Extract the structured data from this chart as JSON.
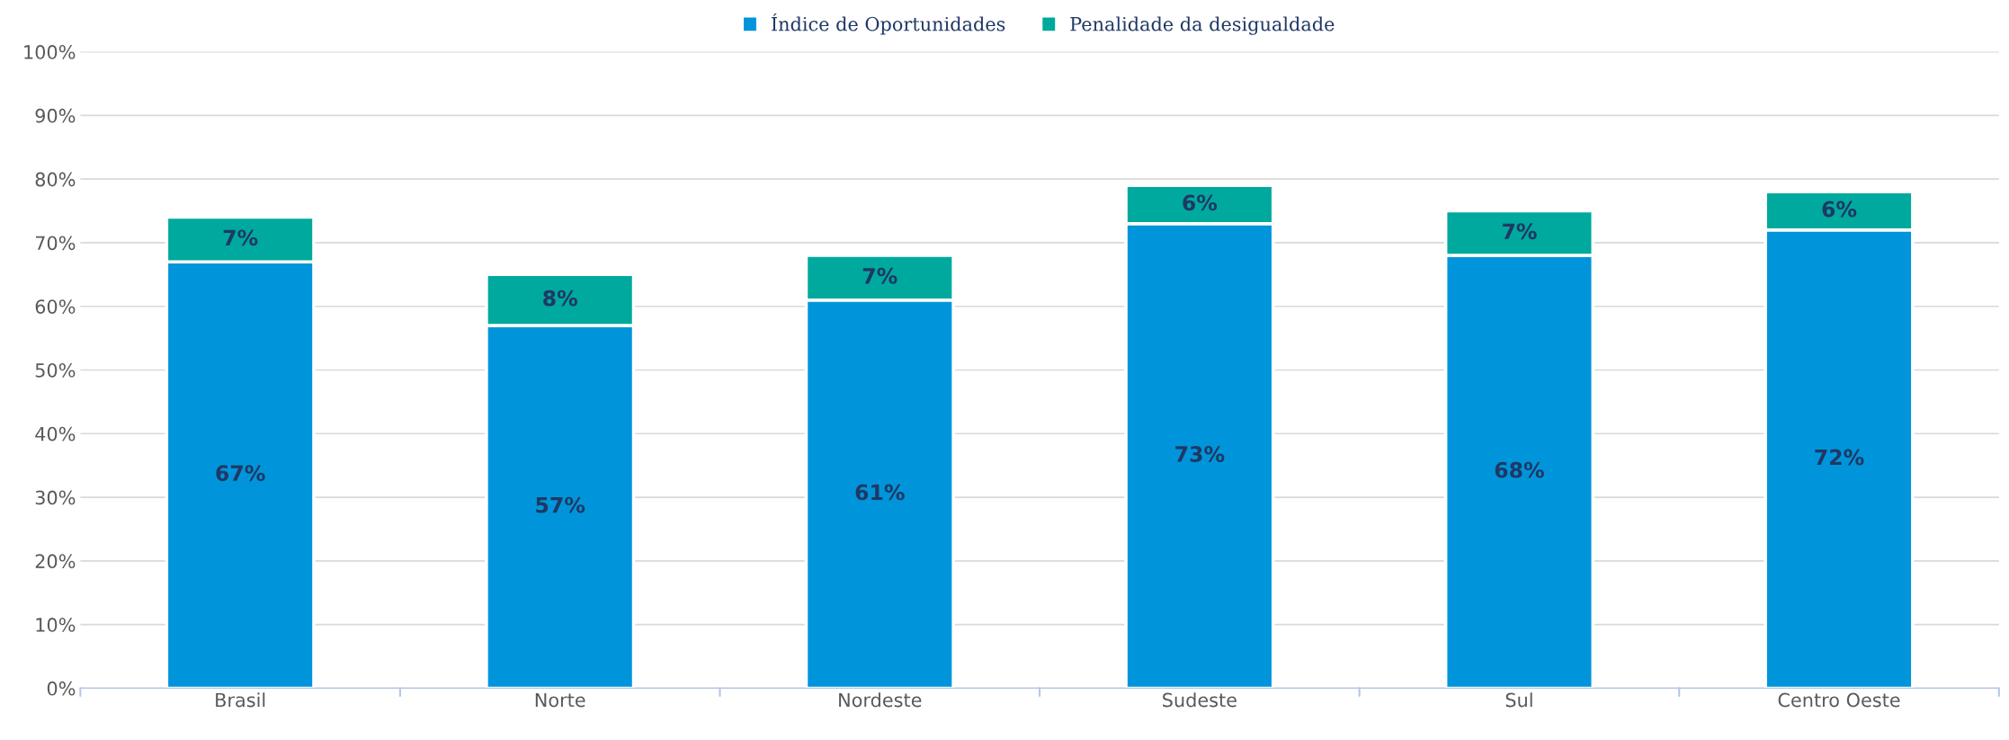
{
  "chart_data": {
    "type": "bar",
    "stacked": true,
    "categories": [
      "Brasil",
      "Norte",
      "Nordeste",
      "Sudeste",
      "Sul",
      "Centro Oeste"
    ],
    "series": [
      {
        "name": "Índice de Oportunidades",
        "color": "#0095da",
        "values": [
          67,
          57,
          61,
          73,
          68,
          72
        ],
        "value_labels": [
          "67%",
          "57%",
          "61%",
          "73%",
          "68%",
          "72%"
        ]
      },
      {
        "name": "Penalidade da desigualdade",
        "color": "#00a99d",
        "values": [
          7,
          8,
          7,
          6,
          7,
          6
        ],
        "value_labels": [
          "7%",
          "8%",
          "7%",
          "6%",
          "7%",
          "6%"
        ]
      }
    ],
    "ylim": [
      0,
      100
    ],
    "yticks": [
      {
        "value": 0,
        "label": "0%"
      },
      {
        "value": 10,
        "label": "10%"
      },
      {
        "value": 20,
        "label": "20%"
      },
      {
        "value": 30,
        "label": "30%"
      },
      {
        "value": 40,
        "label": "40%"
      },
      {
        "value": 50,
        "label": "50%"
      },
      {
        "value": 60,
        "label": "60%"
      },
      {
        "value": 70,
        "label": "70%"
      },
      {
        "value": 80,
        "label": "80%"
      },
      {
        "value": 90,
        "label": "90%"
      },
      {
        "value": 100,
        "label": "100%"
      }
    ],
    "grid": "y",
    "legend": "top"
  }
}
